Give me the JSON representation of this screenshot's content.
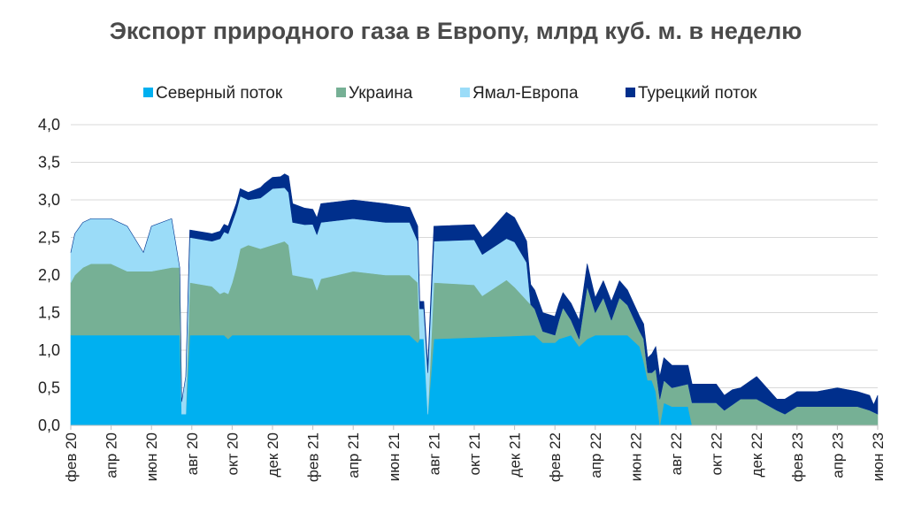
{
  "chart_data": {
    "type": "area",
    "stacked": true,
    "title": "Экспорт природного газа в Европу, млрд куб. м. в неделю",
    "xlabel": "",
    "ylabel": "",
    "ylim": [
      0,
      4
    ],
    "yticks": [
      0,
      0.5,
      1,
      1.5,
      2,
      2.5,
      3,
      3.5,
      4
    ],
    "ytick_labels": [
      "0,0",
      "0,5",
      "1,0",
      "1,5",
      "2,0",
      "2,5",
      "3,0",
      "3,5",
      "4,0"
    ],
    "grid": true,
    "legend_position": "top",
    "x_start_week": 0,
    "x_end_week": 200,
    "x_tick_labels": [
      "фев 20",
      "апр 20",
      "июн 20",
      "авг 20",
      "окт 20",
      "дек 20",
      "фев 21",
      "апр 21",
      "июн 21",
      "авг 21",
      "окт 21",
      "дек 21",
      "фев 22",
      "апр 22",
      "июн 22",
      "авг 22",
      "окт 22",
      "дек 22",
      "фев 23",
      "апр 23",
      "июн 23"
    ],
    "series": [
      {
        "name": "Северный поток",
        "color": "#00b0f0",
        "points": [
          [
            0,
            1.2
          ],
          [
            27,
            1.2
          ],
          [
            27.5,
            0.15
          ],
          [
            28.5,
            0.15
          ],
          [
            29.5,
            1.2
          ],
          [
            38,
            1.2
          ],
          [
            39,
            1.15
          ],
          [
            40,
            1.2
          ],
          [
            84,
            1.2
          ],
          [
            86,
            1.1
          ],
          [
            86.5,
            1.15
          ],
          [
            87.5,
            1.15
          ],
          [
            88.5,
            0.15
          ],
          [
            90,
            1.15
          ],
          [
            115,
            1.2
          ],
          [
            117,
            1.1
          ],
          [
            120,
            1.1
          ],
          [
            121,
            1.15
          ],
          [
            124,
            1.2
          ],
          [
            126,
            1.05
          ],
          [
            128,
            1.15
          ],
          [
            130,
            1.2
          ],
          [
            138,
            1.2
          ],
          [
            141,
            1.05
          ],
          [
            142,
            0.85
          ],
          [
            143,
            0.6
          ],
          [
            144,
            0.6
          ],
          [
            145,
            0.45
          ],
          [
            146,
            0.0
          ],
          [
            147,
            0.3
          ],
          [
            149,
            0.25
          ],
          [
            153,
            0.25
          ],
          [
            154,
            0.0
          ],
          [
            200,
            0.0
          ]
        ]
      },
      {
        "name": "Украина",
        "color": "#76b095",
        "points": [
          [
            0,
            0.7
          ],
          [
            1,
            0.8
          ],
          [
            3,
            0.9
          ],
          [
            5,
            0.95
          ],
          [
            10,
            0.95
          ],
          [
            14,
            0.85
          ],
          [
            20,
            0.85
          ],
          [
            25,
            0.9
          ],
          [
            27,
            0.9
          ],
          [
            27.5,
            0.0
          ],
          [
            28.5,
            0.0
          ],
          [
            29.5,
            0.7
          ],
          [
            35,
            0.65
          ],
          [
            37,
            0.55
          ],
          [
            39,
            0.6
          ],
          [
            40,
            0.7
          ],
          [
            41,
            0.9
          ],
          [
            42,
            1.15
          ],
          [
            44,
            1.2
          ],
          [
            47,
            1.15
          ],
          [
            50,
            1.2
          ],
          [
            53,
            1.25
          ],
          [
            54,
            1.2
          ],
          [
            55,
            0.8
          ],
          [
            60,
            0.75
          ],
          [
            61,
            0.6
          ],
          [
            62,
            0.75
          ],
          [
            70,
            0.85
          ],
          [
            78,
            0.8
          ],
          [
            84,
            0.8
          ],
          [
            86,
            0.8
          ],
          [
            86.5,
            0.0
          ],
          [
            87.5,
            0.0
          ],
          [
            88.5,
            0.0
          ],
          [
            90,
            0.75
          ],
          [
            100,
            0.7
          ],
          [
            102,
            0.55
          ],
          [
            108,
            0.75
          ],
          [
            110,
            0.65
          ],
          [
            115,
            0.35
          ],
          [
            117,
            0.15
          ],
          [
            120,
            0.1
          ],
          [
            122,
            0.4
          ],
          [
            124,
            0.2
          ],
          [
            126,
            0.1
          ],
          [
            128,
            0.7
          ],
          [
            130,
            0.3
          ],
          [
            132,
            0.5
          ],
          [
            134,
            0.2
          ],
          [
            136,
            0.5
          ],
          [
            138,
            0.4
          ],
          [
            141,
            0.2
          ],
          [
            142,
            0.3
          ],
          [
            143,
            0.1
          ],
          [
            144,
            0.1
          ],
          [
            145,
            0.3
          ],
          [
            146,
            0.35
          ],
          [
            147,
            0.3
          ],
          [
            149,
            0.25
          ],
          [
            153,
            0.3
          ],
          [
            154,
            0.3
          ],
          [
            156,
            0.3
          ],
          [
            160,
            0.3
          ],
          [
            162,
            0.2
          ],
          [
            166,
            0.35
          ],
          [
            170,
            0.35
          ],
          [
            175,
            0.2
          ],
          [
            177,
            0.15
          ],
          [
            180,
            0.25
          ],
          [
            185,
            0.25
          ],
          [
            195,
            0.25
          ],
          [
            198,
            0.2
          ],
          [
            200,
            0.15
          ]
        ]
      },
      {
        "name": "Ямал-Европа",
        "color": "#9bdcf8",
        "points": [
          [
            0,
            0.4
          ],
          [
            1,
            0.55
          ],
          [
            3,
            0.6
          ],
          [
            6,
            0.6
          ],
          [
            9,
            0.6
          ],
          [
            14,
            0.6
          ],
          [
            18,
            0.25
          ],
          [
            20,
            0.6
          ],
          [
            25,
            0.65
          ],
          [
            27,
            0.0
          ],
          [
            28.5,
            0.5
          ],
          [
            29.5,
            0.6
          ],
          [
            35,
            0.6
          ],
          [
            38,
            0.8
          ],
          [
            40,
            0.8
          ],
          [
            44,
            0.6
          ],
          [
            50,
            0.75
          ],
          [
            54,
            0.7
          ],
          [
            55,
            0.7
          ],
          [
            58,
            0.7
          ],
          [
            62,
            0.75
          ],
          [
            70,
            0.7
          ],
          [
            78,
            0.7
          ],
          [
            84,
            0.7
          ],
          [
            86,
            0.55
          ],
          [
            86.5,
            0.4
          ],
          [
            87.5,
            0.4
          ],
          [
            88.5,
            0.55
          ],
          [
            90,
            0.55
          ],
          [
            100,
            0.6
          ],
          [
            102,
            0.55
          ],
          [
            108,
            0.55
          ],
          [
            110,
            0.6
          ],
          [
            113,
            0.5
          ],
          [
            114,
            0.0
          ],
          [
            200,
            0.0
          ]
        ]
      },
      {
        "name": "Турецкий поток",
        "color": "#002f8c",
        "points": [
          [
            0,
            0.0
          ],
          [
            28.5,
            0.0
          ],
          [
            29.5,
            0.1
          ],
          [
            34,
            0.1
          ],
          [
            40,
            0.1
          ],
          [
            44,
            0.1
          ],
          [
            48,
            0.15
          ],
          [
            52,
            0.15
          ],
          [
            55,
            0.25
          ],
          [
            60,
            0.2
          ],
          [
            62,
            0.25
          ],
          [
            70,
            0.25
          ],
          [
            78,
            0.25
          ],
          [
            84,
            0.2
          ],
          [
            86,
            0.2
          ],
          [
            86.5,
            0.1
          ],
          [
            88.5,
            0.1
          ],
          [
            90,
            0.2
          ],
          [
            100,
            0.2
          ],
          [
            104,
            0.25
          ],
          [
            108,
            0.35
          ],
          [
            112,
            0.3
          ],
          [
            115,
            0.25
          ],
          [
            117,
            0.25
          ],
          [
            120,
            0.25
          ],
          [
            122,
            0.2
          ],
          [
            126,
            0.25
          ],
          [
            128,
            0.3
          ],
          [
            130,
            0.2
          ],
          [
            134,
            0.25
          ],
          [
            138,
            0.2
          ],
          [
            141,
            0.2
          ],
          [
            143,
            0.2
          ],
          [
            145,
            0.3
          ],
          [
            146,
            0.3
          ],
          [
            149,
            0.3
          ],
          [
            153,
            0.25
          ],
          [
            154,
            0.25
          ],
          [
            156,
            0.25
          ],
          [
            160,
            0.25
          ],
          [
            162,
            0.2
          ],
          [
            164,
            0.2
          ],
          [
            166,
            0.15
          ],
          [
            170,
            0.3
          ],
          [
            175,
            0.15
          ],
          [
            177,
            0.2
          ],
          [
            180,
            0.2
          ],
          [
            185,
            0.2
          ],
          [
            190,
            0.25
          ],
          [
            195,
            0.2
          ],
          [
            198,
            0.2
          ],
          [
            199,
            0.1
          ],
          [
            200,
            0.25
          ]
        ]
      }
    ]
  }
}
